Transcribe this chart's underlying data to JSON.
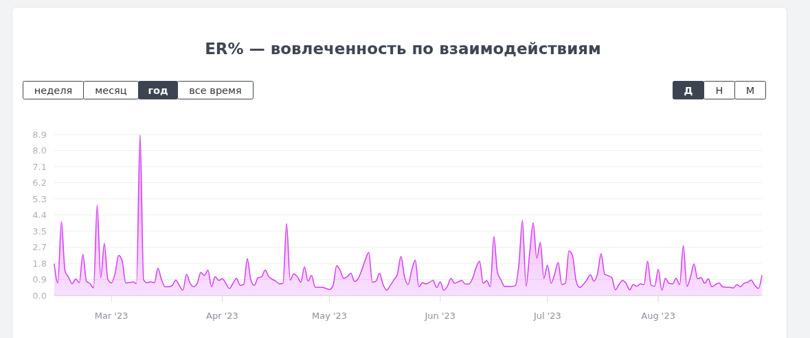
{
  "chart_data": {
    "type": "area",
    "title": "ER% — вовлеченность по взаимодействиям",
    "annotations": [
      "неделя",
      "месяц",
      "год",
      "все время",
      "Д",
      "Н",
      "М"
    ],
    "x": [
      "2023-02-13",
      "2023-02-14",
      "2023-02-15",
      "2023-02-16",
      "2023-02-17",
      "2023-02-18",
      "2023-02-19",
      "2023-02-20",
      "2023-02-21",
      "2023-02-22",
      "2023-02-23",
      "2023-02-24",
      "2023-02-25",
      "2023-02-26",
      "2023-02-27",
      "2023-02-28",
      "2023-03-01",
      "2023-03-02",
      "2023-03-03",
      "2023-03-04",
      "2023-03-05",
      "2023-03-06",
      "2023-03-07",
      "2023-03-08",
      "2023-03-09",
      "2023-03-10",
      "2023-03-11",
      "2023-03-12",
      "2023-03-13",
      "2023-03-14",
      "2023-03-15",
      "2023-03-16",
      "2023-03-17",
      "2023-03-18",
      "2023-03-19",
      "2023-03-20",
      "2023-03-21",
      "2023-03-22",
      "2023-03-23",
      "2023-03-24",
      "2023-03-25",
      "2023-03-26",
      "2023-03-27",
      "2023-03-28",
      "2023-03-29",
      "2023-03-30",
      "2023-03-31",
      "2023-04-01",
      "2023-04-02",
      "2023-04-03",
      "2023-04-04",
      "2023-04-05",
      "2023-04-06",
      "2023-04-07",
      "2023-04-08",
      "2023-04-09",
      "2023-04-10",
      "2023-04-11",
      "2023-04-12",
      "2023-04-13",
      "2023-04-14",
      "2023-04-15",
      "2023-04-16",
      "2023-04-17",
      "2023-04-18",
      "2023-04-19",
      "2023-04-20",
      "2023-04-21",
      "2023-04-22",
      "2023-04-23",
      "2023-04-24",
      "2023-04-25",
      "2023-04-26",
      "2023-04-27",
      "2023-04-28",
      "2023-04-29",
      "2023-04-30",
      "2023-05-01",
      "2023-05-02",
      "2023-05-03",
      "2023-05-04",
      "2023-05-05",
      "2023-05-06",
      "2023-05-07",
      "2023-05-08",
      "2023-05-09",
      "2023-05-10",
      "2023-05-11",
      "2023-05-12",
      "2023-05-13",
      "2023-05-14",
      "2023-05-15",
      "2023-05-16",
      "2023-05-17",
      "2023-05-18",
      "2023-05-19",
      "2023-05-20",
      "2023-05-21",
      "2023-05-22",
      "2023-05-23",
      "2023-05-24",
      "2023-05-25",
      "2023-05-26",
      "2023-05-27",
      "2023-05-28",
      "2023-05-29",
      "2023-05-30",
      "2023-05-31",
      "2023-06-01",
      "2023-06-02",
      "2023-06-03",
      "2023-06-04",
      "2023-06-05",
      "2023-06-06",
      "2023-06-07",
      "2023-06-08",
      "2023-06-09",
      "2023-06-10",
      "2023-06-11",
      "2023-06-12",
      "2023-06-13",
      "2023-06-14",
      "2023-06-15",
      "2023-06-16",
      "2023-06-17",
      "2023-06-18",
      "2023-06-19",
      "2023-06-20",
      "2023-06-21",
      "2023-06-22",
      "2023-06-23",
      "2023-06-24",
      "2023-06-25",
      "2023-06-26",
      "2023-06-27",
      "2023-06-28",
      "2023-06-29",
      "2023-06-30",
      "2023-07-01",
      "2023-07-02",
      "2023-07-03",
      "2023-07-04",
      "2023-07-05",
      "2023-07-06",
      "2023-07-07",
      "2023-07-08",
      "2023-07-09",
      "2023-07-10",
      "2023-07-11",
      "2023-07-12",
      "2023-07-13",
      "2023-07-14",
      "2023-07-15",
      "2023-07-16",
      "2023-07-17",
      "2023-07-18",
      "2023-07-19",
      "2023-07-20",
      "2023-07-21",
      "2023-07-22",
      "2023-07-23",
      "2023-07-24",
      "2023-07-25",
      "2023-07-26",
      "2023-07-27",
      "2023-07-28",
      "2023-07-29",
      "2023-07-30",
      "2023-07-31",
      "2023-08-01",
      "2023-08-02",
      "2023-08-03",
      "2023-08-04",
      "2023-08-05",
      "2023-08-06",
      "2023-08-07",
      "2023-08-08",
      "2023-08-09",
      "2023-08-10",
      "2023-08-11",
      "2023-08-12",
      "2023-08-13",
      "2023-08-14",
      "2023-08-15",
      "2023-08-16",
      "2023-08-17",
      "2023-08-18",
      "2023-08-19",
      "2023-08-20",
      "2023-08-21",
      "2023-08-22",
      "2023-08-23",
      "2023-08-24",
      "2023-08-25",
      "2023-08-26",
      "2023-08-27",
      "2023-08-28",
      "2023-08-29",
      "2023-08-30"
    ],
    "values": [
      1.73,
      0.69,
      4.06,
      1.36,
      1.0,
      0.65,
      0.9,
      0.7,
      2.26,
      0.79,
      0.65,
      0.42,
      4.96,
      0.98,
      2.86,
      0.88,
      0.69,
      1.2,
      2.2,
      1.9,
      0.69,
      0.71,
      0.74,
      0.66,
      8.83,
      0.85,
      0.7,
      0.75,
      0.7,
      1.5,
      0.88,
      0.48,
      0.48,
      0.55,
      0.85,
      0.55,
      0.29,
      1.17,
      0.67,
      0.48,
      0.67,
      1.27,
      1.1,
      1.39,
      0.48,
      1.04,
      0.83,
      0.92,
      0.67,
      0.38,
      0.67,
      0.94,
      0.56,
      0.6,
      2.02,
      0.85,
      0.56,
      0.98,
      1.02,
      1.39,
      1.04,
      0.89,
      0.79,
      0.64,
      0.67,
      3.95,
      0.85,
      1.19,
      1.04,
      0.73,
      1.57,
      0.79,
      1.1,
      0.45,
      0.45,
      0.45,
      0.39,
      0.33,
      0.54,
      1.64,
      1.38,
      0.94,
      1.04,
      1.22,
      0.77,
      0.92,
      1.38,
      1.95,
      2.36,
      0.73,
      0.79,
      1.22,
      0.6,
      0.29,
      0.54,
      0.85,
      1.17,
      2.15,
      1.02,
      0.6,
      1.39,
      1.95,
      0.48,
      0.7,
      0.64,
      0.73,
      0.83,
      0.44,
      0.75,
      0.29,
      0.51,
      0.94,
      0.67,
      0.75,
      0.83,
      0.63,
      0.63,
      0.92,
      1.52,
      1.88,
      0.67,
      0.82,
      0.48,
      3.24,
      1.27,
      0.85,
      0.5,
      0.5,
      0.5,
      0.54,
      1.7,
      4.12,
      0.51,
      2.3,
      3.99,
      2.05,
      2.92,
      0.94,
      1.67,
      0.67,
      1.17,
      1.82,
      0.6,
      0.67,
      2.45,
      2.2,
      0.82,
      0.44,
      0.6,
      0.85,
      1.14,
      0.79,
      1.19,
      2.3,
      1.17,
      1.09,
      0.98,
      0.31,
      0.6,
      0.83,
      0.67,
      0.31,
      0.6,
      0.51,
      0.64,
      0.6,
      1.88,
      0.56,
      0.51,
      1.44,
      0.29,
      0.94,
      0.67,
      0.64,
      0.94,
      0.6,
      2.74,
      0.5,
      1.0,
      1.73,
      0.92,
      0.98,
      0.67,
      0.92,
      0.48,
      0.6,
      0.69,
      0.48,
      0.45,
      0.45,
      0.41,
      0.6,
      0.48,
      0.67,
      0.73,
      0.85,
      0.56,
      0.39,
      1.1
    ],
    "color": "#d43af5",
    "xlim": [
      "2023-02-13",
      "2023-08-30"
    ],
    "xticks": [
      {
        "value": "2023-03-01",
        "label": "Mar '23"
      },
      {
        "value": "2023-04-01",
        "label": "Apr '23"
      },
      {
        "value": "2023-05-01",
        "label": "May '23"
      },
      {
        "value": "2023-06-01",
        "label": "Jun '23"
      },
      {
        "value": "2023-07-01",
        "label": "Jul '23"
      },
      {
        "value": "2023-08-01",
        "label": "Aug '23"
      }
    ],
    "ylim": [
      0,
      8.85
    ],
    "yticks": [
      {
        "value": 0,
        "label": "0.0"
      },
      {
        "value": 0.885,
        "label": "0.9"
      },
      {
        "value": 1.77,
        "label": "1.8"
      },
      {
        "value": 2.655,
        "label": "2.7"
      },
      {
        "value": 3.54,
        "label": "3.5"
      },
      {
        "value": 4.425,
        "label": "4.4"
      },
      {
        "value": 5.31,
        "label": "5.3"
      },
      {
        "value": 6.195,
        "label": "6.2"
      },
      {
        "value": 7.08,
        "label": "7.1"
      },
      {
        "value": 7.965,
        "label": "8.0"
      },
      {
        "value": 8.85,
        "label": "8.9"
      }
    ],
    "grid": "y"
  }
}
